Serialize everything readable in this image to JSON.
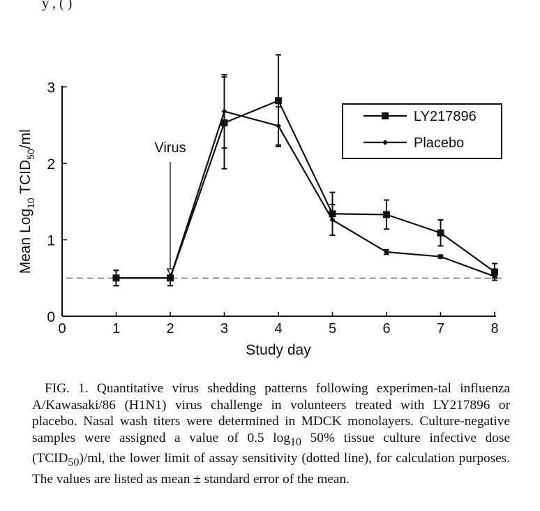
{
  "top_fragment": "y                                                  ,                                     (           )",
  "chart_data": {
    "type": "line",
    "title": "",
    "xlabel": "Study day",
    "ylabel_parts": {
      "pre": "Mean Log",
      "sub1": "10",
      "mid": " TCID",
      "sub2": "50",
      "post": "/ml"
    },
    "xlim": [
      0,
      8
    ],
    "ylim": [
      0,
      3
    ],
    "x_ticks": [
      "0",
      "1",
      "2",
      "3",
      "4",
      "5",
      "6",
      "7",
      "8"
    ],
    "y_ticks": [
      "0",
      "1",
      "2",
      "3"
    ],
    "reference_line": {
      "y": 0.5,
      "style": "dashed"
    },
    "annotation": {
      "text": "Virus",
      "x": 2,
      "arrow_to_y": 0.52
    },
    "legend_position": "top-right",
    "series": [
      {
        "name": "LY217896",
        "marker": "square",
        "x": [
          1,
          2,
          3,
          4,
          5,
          6,
          7,
          8
        ],
        "y": [
          0.5,
          0.5,
          2.53,
          2.82,
          1.34,
          1.33,
          1.09,
          0.58
        ],
        "err": [
          0.1,
          0.1,
          0.6,
          0.6,
          0.28,
          0.19,
          0.17,
          0.11
        ]
      },
      {
        "name": "Placebo",
        "marker": "diamond",
        "x": [
          1,
          2,
          3,
          4,
          5,
          6,
          7,
          8
        ],
        "y": [
          0.5,
          0.5,
          2.68,
          2.49,
          1.26,
          0.84,
          0.78,
          0.52
        ],
        "err": [
          0.1,
          0.1,
          0.48,
          0.25,
          0.2,
          0.03,
          0.02,
          0.02
        ]
      }
    ]
  },
  "caption": {
    "prefix": "FIG. 1. Quantitative virus shedding patterns following experimen-tal influenza A/Kawasaki/86 (H1N1) virus challenge in volunteers treated with LY217896 or placebo. Nasal wash titers were determined in MDCK monolayers. Culture-negative samples were assigned a value of 0.5 log",
    "sub1": "10",
    "mid": " 50% tissue culture infective dose (TCID",
    "sub2": "50",
    "suffix": ")/ml, the lower limit of assay sensitivity (dotted line), for calculation purposes. The values are listed as mean ± standard error of the mean."
  }
}
